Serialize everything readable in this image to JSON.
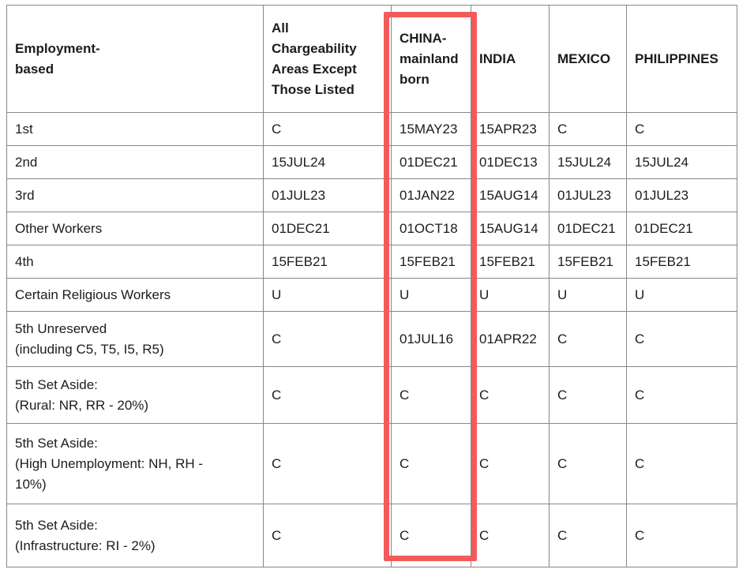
{
  "colors": {
    "background": "#ffffff",
    "table_border": "#878787",
    "text": "#1c1c1c",
    "highlight_border": "#f45a5a"
  },
  "highlight": {
    "shape": "rectangle",
    "color": "#f45a5a",
    "annotated_column": "CHINA-mainland born"
  },
  "table": {
    "corner_header": "Employment-\nbased",
    "columns": [
      {
        "id": "all-chargeability",
        "label": "All\nChargeability\nAreas Except\nThose Listed",
        "highlighted": false
      },
      {
        "id": "china-mainland-born",
        "label": "CHINA-\nmainland\nborn",
        "highlighted": true
      },
      {
        "id": "india",
        "label": "INDIA",
        "highlighted": false
      },
      {
        "id": "mexico",
        "label": "MEXICO",
        "highlighted": false
      },
      {
        "id": "philippines",
        "label": "PHILIPPINES",
        "highlighted": false
      }
    ],
    "rows": [
      {
        "label": "1st",
        "values": [
          "C",
          "15MAY23",
          "15APR23",
          "C",
          "C"
        ]
      },
      {
        "label": "2nd",
        "values": [
          "15JUL24",
          "01DEC21",
          "01DEC13",
          "15JUL24",
          "15JUL24"
        ]
      },
      {
        "label": "3rd",
        "values": [
          "01JUL23",
          "01JAN22",
          "15AUG14",
          "01JUL23",
          "01JUL23"
        ]
      },
      {
        "label": "Other Workers",
        "values": [
          "01DEC21",
          "01OCT18",
          "15AUG14",
          "01DEC21",
          "01DEC21"
        ]
      },
      {
        "label": "4th",
        "values": [
          "15FEB21",
          "15FEB21",
          "15FEB21",
          "15FEB21",
          "15FEB21"
        ]
      },
      {
        "label": "Certain Religious Workers",
        "values": [
          "U",
          "U",
          "U",
          "U",
          "U"
        ]
      },
      {
        "label": "5th Unreserved\n(including C5, T5, I5, R5)",
        "values": [
          "C",
          "01JUL16",
          "01APR22",
          "C",
          "C"
        ]
      },
      {
        "label": "5th Set Aside:\n(Rural: NR, RR - 20%)",
        "values": [
          "C",
          "C",
          "C",
          "C",
          "C"
        ]
      },
      {
        "label": "5th Set Aside:\n(High Unemployment: NH, RH -\n10%)",
        "values": [
          "C",
          "C",
          "C",
          "C",
          "C"
        ]
      },
      {
        "label": "5th Set Aside:\n(Infrastructure: RI - 2%)",
        "values": [
          "C",
          "C",
          "C",
          "C",
          "C"
        ]
      }
    ]
  }
}
